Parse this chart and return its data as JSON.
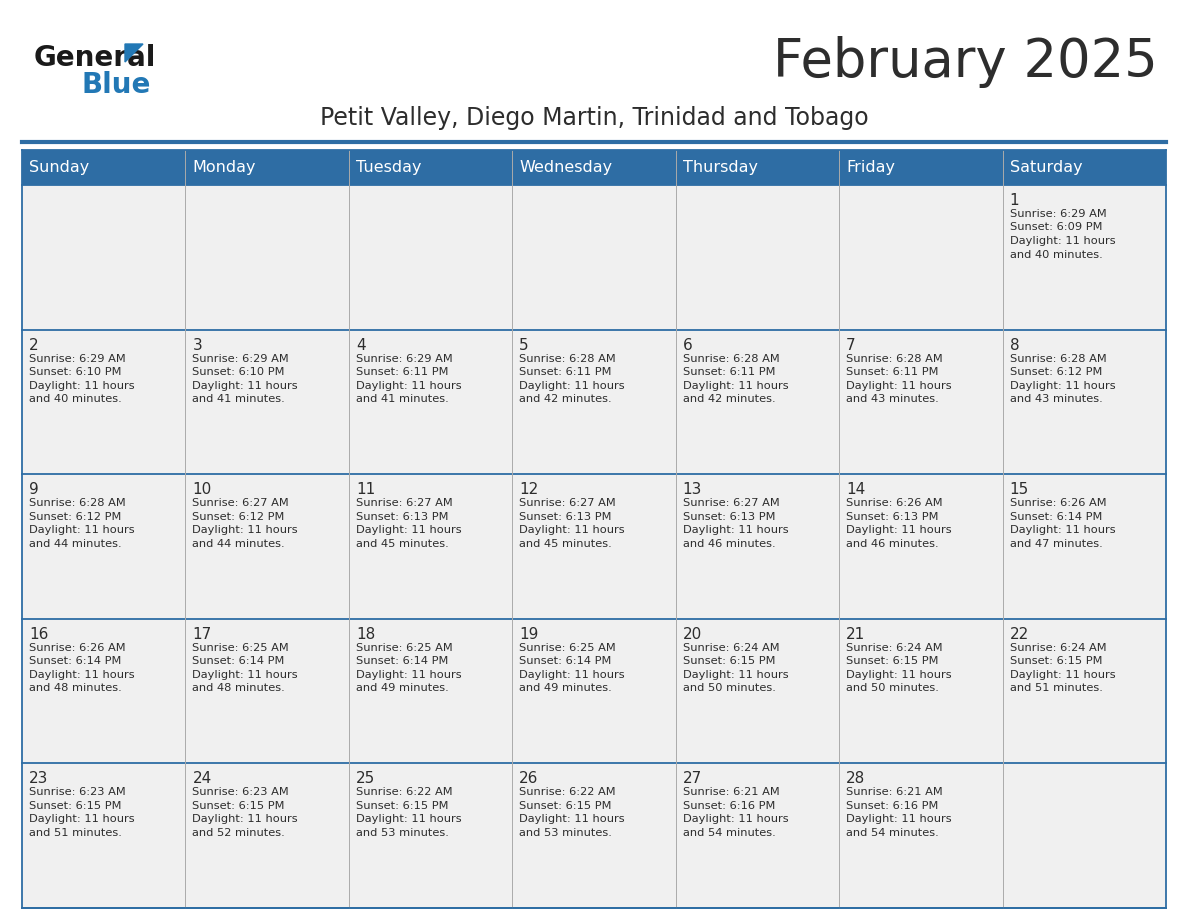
{
  "title": "February 2025",
  "subtitle": "Petit Valley, Diego Martin, Trinidad and Tobago",
  "title_color": "#2d2d2d",
  "subtitle_color": "#2d2d2d",
  "header_bg_color": "#2e6da4",
  "header_text_color": "#ffffff",
  "cell_bg_color": "#f0f0f0",
  "grid_line_color": "#2e6da4",
  "grid_line_color_light": "#aaaaaa",
  "day_headers": [
    "Sunday",
    "Monday",
    "Tuesday",
    "Wednesday",
    "Thursday",
    "Friday",
    "Saturday"
  ],
  "calendar": [
    [
      "",
      "",
      "",
      "",
      "",
      "",
      "1\nSunrise: 6:29 AM\nSunset: 6:09 PM\nDaylight: 11 hours\nand 40 minutes."
    ],
    [
      "2\nSunrise: 6:29 AM\nSunset: 6:10 PM\nDaylight: 11 hours\nand 40 minutes.",
      "3\nSunrise: 6:29 AM\nSunset: 6:10 PM\nDaylight: 11 hours\nand 41 minutes.",
      "4\nSunrise: 6:29 AM\nSunset: 6:11 PM\nDaylight: 11 hours\nand 41 minutes.",
      "5\nSunrise: 6:28 AM\nSunset: 6:11 PM\nDaylight: 11 hours\nand 42 minutes.",
      "6\nSunrise: 6:28 AM\nSunset: 6:11 PM\nDaylight: 11 hours\nand 42 minutes.",
      "7\nSunrise: 6:28 AM\nSunset: 6:11 PM\nDaylight: 11 hours\nand 43 minutes.",
      "8\nSunrise: 6:28 AM\nSunset: 6:12 PM\nDaylight: 11 hours\nand 43 minutes."
    ],
    [
      "9\nSunrise: 6:28 AM\nSunset: 6:12 PM\nDaylight: 11 hours\nand 44 minutes.",
      "10\nSunrise: 6:27 AM\nSunset: 6:12 PM\nDaylight: 11 hours\nand 44 minutes.",
      "11\nSunrise: 6:27 AM\nSunset: 6:13 PM\nDaylight: 11 hours\nand 45 minutes.",
      "12\nSunrise: 6:27 AM\nSunset: 6:13 PM\nDaylight: 11 hours\nand 45 minutes.",
      "13\nSunrise: 6:27 AM\nSunset: 6:13 PM\nDaylight: 11 hours\nand 46 minutes.",
      "14\nSunrise: 6:26 AM\nSunset: 6:13 PM\nDaylight: 11 hours\nand 46 minutes.",
      "15\nSunrise: 6:26 AM\nSunset: 6:14 PM\nDaylight: 11 hours\nand 47 minutes."
    ],
    [
      "16\nSunrise: 6:26 AM\nSunset: 6:14 PM\nDaylight: 11 hours\nand 48 minutes.",
      "17\nSunrise: 6:25 AM\nSunset: 6:14 PM\nDaylight: 11 hours\nand 48 minutes.",
      "18\nSunrise: 6:25 AM\nSunset: 6:14 PM\nDaylight: 11 hours\nand 49 minutes.",
      "19\nSunrise: 6:25 AM\nSunset: 6:14 PM\nDaylight: 11 hours\nand 49 minutes.",
      "20\nSunrise: 6:24 AM\nSunset: 6:15 PM\nDaylight: 11 hours\nand 50 minutes.",
      "21\nSunrise: 6:24 AM\nSunset: 6:15 PM\nDaylight: 11 hours\nand 50 minutes.",
      "22\nSunrise: 6:24 AM\nSunset: 6:15 PM\nDaylight: 11 hours\nand 51 minutes."
    ],
    [
      "23\nSunrise: 6:23 AM\nSunset: 6:15 PM\nDaylight: 11 hours\nand 51 minutes.",
      "24\nSunrise: 6:23 AM\nSunset: 6:15 PM\nDaylight: 11 hours\nand 52 minutes.",
      "25\nSunrise: 6:22 AM\nSunset: 6:15 PM\nDaylight: 11 hours\nand 53 minutes.",
      "26\nSunrise: 6:22 AM\nSunset: 6:15 PM\nDaylight: 11 hours\nand 53 minutes.",
      "27\nSunrise: 6:21 AM\nSunset: 6:16 PM\nDaylight: 11 hours\nand 54 minutes.",
      "28\nSunrise: 6:21 AM\nSunset: 6:16 PM\nDaylight: 11 hours\nand 54 minutes.",
      ""
    ]
  ],
  "logo_text_general": "General",
  "logo_text_blue": "Blue",
  "logo_color_general": "#1a1a1a",
  "logo_color_blue": "#2278b5",
  "logo_triangle_color": "#2278b5",
  "title_fontsize": 38,
  "subtitle_fontsize": 17,
  "header_fontsize": 11.5,
  "day_num_fontsize": 11,
  "cell_text_fontsize": 8.2
}
